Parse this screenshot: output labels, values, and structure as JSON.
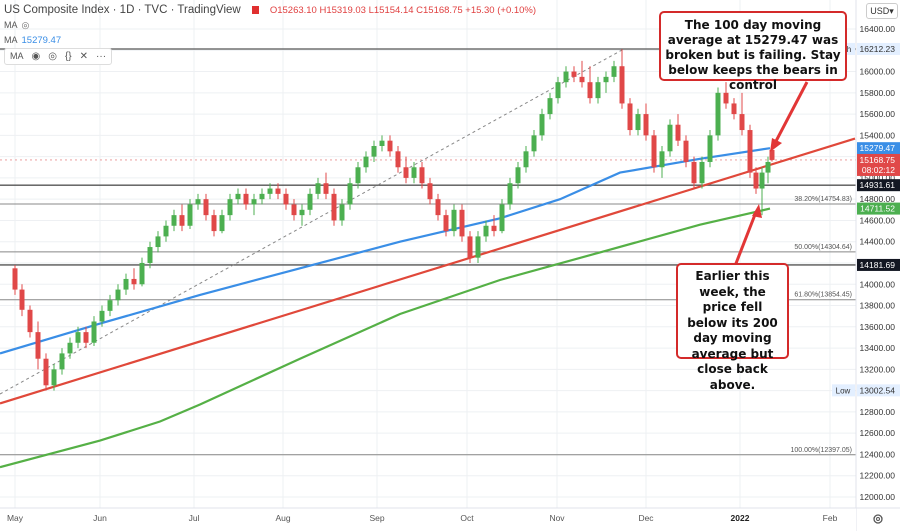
{
  "header": {
    "title": "US Composite Index · 1D · TVC · TradingView",
    "ohlc": "O15263.10 H15319.03 L15154.14 C15168.75 +15.30 (+0.10%)",
    "ma_rows": [
      {
        "label": "MA",
        "value": ""
      },
      {
        "label": "MA",
        "value": "15279.47"
      },
      {
        "label": "MA",
        "value": ""
      }
    ],
    "toolbar_icons": [
      "eye-icon",
      "settings-icon",
      "source-code-icon",
      "close-icon",
      "more-icon"
    ],
    "currency": "USD"
  },
  "annotations": {
    "callout_top": "The 100 day moving average at 15279.47 was broken but is failing.  Stay below keeps the bears in control",
    "callout_bottom": "Earlier this week, the price fell below its 200 day moving average but close back above."
  },
  "colors": {
    "up": "#4caf50",
    "down": "#e04848",
    "ma100": "#3a8ee6",
    "ma200": "#55b046",
    "trendline": "#e0483a",
    "callout_border": "#d42a2a",
    "hline": "#555555"
  },
  "chart_data": {
    "type": "candlestick",
    "title": "US Composite Index · 1D · TVC",
    "xlabel": "",
    "ylabel": "USD",
    "ylim": [
      11900,
      16500
    ],
    "x_ticks": [
      "May",
      "Jun",
      "Jul",
      "Aug",
      "Sep",
      "Oct",
      "Nov",
      "Dec",
      "2022",
      "Feb"
    ],
    "y_ticks": [
      12000,
      12200,
      12400,
      12600,
      12800,
      13000,
      13200,
      13400,
      13600,
      13800,
      14000,
      14200,
      14400,
      14600,
      14800,
      15000,
      15200,
      15400,
      15600,
      15800,
      16000,
      16200,
      16400
    ],
    "last_price": {
      "open": 15263.1,
      "high": 15319.03,
      "low": 15154.14,
      "close": 15168.75,
      "change": 15.3,
      "change_pct": 0.1,
      "countdown": "08:02:12"
    },
    "price_labels": [
      {
        "value": "16212.23",
        "type": "high",
        "tag": "High"
      },
      {
        "value": "15279.47",
        "type": "ma100"
      },
      {
        "value": "15168.75",
        "type": "last"
      },
      {
        "value": "14931.61",
        "type": "hline"
      },
      {
        "value": "14711.52",
        "type": "ma200"
      },
      {
        "value": "14181.69",
        "type": "hline"
      },
      {
        "value": "13002.54",
        "type": "low",
        "tag": "Low"
      }
    ],
    "fibonacci": [
      {
        "level": "38.20%",
        "value": 14754.83
      },
      {
        "level": "50.00%",
        "value": 14304.64
      },
      {
        "level": "61.80%",
        "value": 13854.45
      },
      {
        "level": "100.00%",
        "value": 12397.05
      }
    ],
    "series": [
      {
        "name": "MA 100",
        "approx_points": [
          [
            0,
            13350
          ],
          [
            100,
            13630
          ],
          [
            200,
            13900
          ],
          [
            300,
            14150
          ],
          [
            400,
            14400
          ],
          [
            500,
            14620
          ],
          [
            560,
            14800
          ],
          [
            620,
            15050
          ],
          [
            700,
            15180
          ],
          [
            770,
            15279
          ]
        ]
      },
      {
        "name": "MA 200",
        "approx_points": [
          [
            0,
            12280
          ],
          [
            100,
            12530
          ],
          [
            160,
            12710
          ],
          [
            200,
            12870
          ],
          [
            300,
            13300
          ],
          [
            400,
            13720
          ],
          [
            500,
            14040
          ],
          [
            600,
            14300
          ],
          [
            700,
            14560
          ],
          [
            770,
            14711
          ]
        ]
      },
      {
        "name": "Trendline",
        "approx_points": [
          [
            0,
            12880
          ],
          [
            855,
            15370
          ]
        ]
      }
    ],
    "ohlc_approx": [
      [
        15,
        14150,
        14180,
        13900,
        13950
      ],
      [
        22,
        13950,
        14000,
        13700,
        13760
      ],
      [
        30,
        13760,
        13800,
        13500,
        13550
      ],
      [
        38,
        13550,
        13650,
        13200,
        13300
      ],
      [
        46,
        13300,
        13350,
        13000,
        13050
      ],
      [
        54,
        13050,
        13250,
        13000,
        13200
      ],
      [
        62,
        13200,
        13400,
        13150,
        13350
      ],
      [
        70,
        13350,
        13500,
        13300,
        13450
      ],
      [
        78,
        13450,
        13600,
        13400,
        13550
      ],
      [
        86,
        13550,
        13600,
        13400,
        13450
      ],
      [
        94,
        13450,
        13700,
        13420,
        13650
      ],
      [
        102,
        13650,
        13800,
        13600,
        13750
      ],
      [
        110,
        13750,
        13900,
        13700,
        13850
      ],
      [
        118,
        13850,
        14000,
        13800,
        13950
      ],
      [
        126,
        13950,
        14100,
        13900,
        14050
      ],
      [
        134,
        14050,
        14150,
        13950,
        14000
      ],
      [
        142,
        14000,
        14250,
        13980,
        14200
      ],
      [
        150,
        14200,
        14400,
        14150,
        14350
      ],
      [
        158,
        14350,
        14500,
        14300,
        14450
      ],
      [
        166,
        14450,
        14600,
        14400,
        14550
      ],
      [
        174,
        14550,
        14700,
        14500,
        14650
      ],
      [
        182,
        14650,
        14750,
        14500,
        14550
      ],
      [
        190,
        14550,
        14800,
        14520,
        14750
      ],
      [
        198,
        14750,
        14850,
        14700,
        14800
      ],
      [
        206,
        14800,
        14850,
        14600,
        14650
      ],
      [
        214,
        14650,
        14700,
        14450,
        14500
      ],
      [
        222,
        14500,
        14700,
        14480,
        14650
      ],
      [
        230,
        14650,
        14850,
        14600,
        14800
      ],
      [
        238,
        14800,
        14900,
        14750,
        14850
      ],
      [
        246,
        14850,
        14900,
        14700,
        14750
      ],
      [
        254,
        14750,
        14850,
        14650,
        14800
      ],
      [
        262,
        14800,
        14900,
        14750,
        14850
      ],
      [
        270,
        14850,
        14950,
        14800,
        14900
      ],
      [
        278,
        14900,
        14950,
        14800,
        14850
      ],
      [
        286,
        14850,
        14900,
        14700,
        14750
      ],
      [
        294,
        14750,
        14800,
        14600,
        14650
      ],
      [
        302,
        14650,
        14750,
        14550,
        14700
      ],
      [
        310,
        14700,
        14900,
        14650,
        14850
      ],
      [
        318,
        14850,
        15000,
        14800,
        14950
      ],
      [
        326,
        14950,
        15050,
        14800,
        14850
      ],
      [
        334,
        14850,
        14900,
        14550,
        14600
      ],
      [
        342,
        14600,
        14800,
        14550,
        14750
      ],
      [
        350,
        14750,
        15000,
        14700,
        14950
      ],
      [
        358,
        14950,
        15150,
        14900,
        15100
      ],
      [
        366,
        15100,
        15250,
        15050,
        15200
      ],
      [
        374,
        15200,
        15350,
        15150,
        15300
      ],
      [
        382,
        15300,
        15400,
        15250,
        15350
      ],
      [
        390,
        15350,
        15400,
        15200,
        15250
      ],
      [
        398,
        15250,
        15300,
        15050,
        15100
      ],
      [
        406,
        15100,
        15200,
        14950,
        15000
      ],
      [
        414,
        15000,
        15150,
        14950,
        15100
      ],
      [
        422,
        15100,
        15150,
        14900,
        14950
      ],
      [
        430,
        14950,
        15000,
        14750,
        14800
      ],
      [
        438,
        14800,
        14850,
        14600,
        14650
      ],
      [
        446,
        14650,
        14700,
        14450,
        14500
      ],
      [
        454,
        14500,
        14750,
        14450,
        14700
      ],
      [
        462,
        14700,
        14750,
        14400,
        14450
      ],
      [
        470,
        14450,
        14500,
        14200,
        14250
      ],
      [
        478,
        14250,
        14500,
        14200,
        14450
      ],
      [
        486,
        14450,
        14600,
        14400,
        14550
      ],
      [
        494,
        14550,
        14650,
        14450,
        14500
      ],
      [
        502,
        14500,
        14800,
        14480,
        14750
      ],
      [
        510,
        14750,
        15000,
        14700,
        14950
      ],
      [
        518,
        14950,
        15150,
        14900,
        15100
      ],
      [
        526,
        15100,
        15300,
        15050,
        15250
      ],
      [
        534,
        15250,
        15450,
        15200,
        15400
      ],
      [
        542,
        15400,
        15650,
        15350,
        15600
      ],
      [
        550,
        15600,
        15800,
        15550,
        15750
      ],
      [
        558,
        15750,
        15950,
        15700,
        15900
      ],
      [
        566,
        15900,
        16050,
        15850,
        16000
      ],
      [
        574,
        16000,
        16050,
        15900,
        15950
      ],
      [
        582,
        15950,
        16100,
        15850,
        15900
      ],
      [
        590,
        15900,
        16050,
        15700,
        15750
      ],
      [
        598,
        15750,
        15950,
        15700,
        15900
      ],
      [
        606,
        15900,
        16000,
        15800,
        15950
      ],
      [
        614,
        15950,
        16100,
        15900,
        16050
      ],
      [
        622,
        16050,
        16210,
        15650,
        15700
      ],
      [
        630,
        15700,
        15750,
        15400,
        15450
      ],
      [
        638,
        15450,
        15650,
        15400,
        15600
      ],
      [
        646,
        15600,
        15700,
        15350,
        15400
      ],
      [
        654,
        15400,
        15450,
        15050,
        15100
      ],
      [
        662,
        15100,
        15300,
        15000,
        15250
      ],
      [
        670,
        15250,
        15550,
        15200,
        15500
      ],
      [
        678,
        15500,
        15600,
        15300,
        15350
      ],
      [
        686,
        15350,
        15400,
        15100,
        15150
      ],
      [
        694,
        15150,
        15200,
        14900,
        14950
      ],
      [
        702,
        14950,
        15200,
        14900,
        15150
      ],
      [
        710,
        15150,
        15450,
        15100,
        15400
      ],
      [
        718,
        15400,
        15850,
        15350,
        15800
      ],
      [
        726,
        15800,
        15900,
        15650,
        15700
      ],
      [
        734,
        15700,
        15750,
        15550,
        15600
      ],
      [
        742,
        15600,
        15800,
        15400,
        15450
      ],
      [
        750,
        15450,
        15500,
        15000,
        15050
      ],
      [
        756,
        15050,
        15100,
        14850,
        14900
      ],
      [
        762,
        14900,
        15100,
        14650,
        15050
      ],
      [
        768,
        15050,
        15200,
        14950,
        15150
      ],
      [
        772,
        15263,
        15319,
        15154,
        15169
      ]
    ]
  }
}
